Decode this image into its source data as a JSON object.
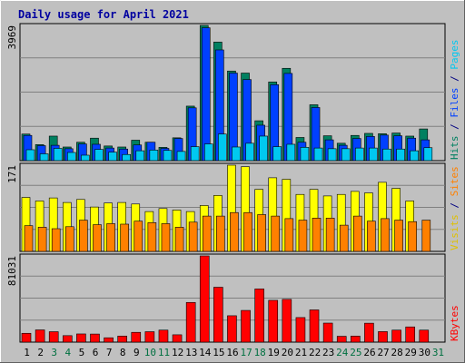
{
  "chart_data": {
    "type": "bar",
    "title": "Daily usage for April 2021",
    "x": [
      "1",
      "2",
      "3",
      "4",
      "5",
      "6",
      "7",
      "8",
      "9",
      "10",
      "11",
      "12",
      "13",
      "14",
      "15",
      "16",
      "17",
      "18",
      "19",
      "20",
      "21",
      "22",
      "23",
      "24",
      "25",
      "26",
      "27",
      "28",
      "29",
      "30",
      "31"
    ],
    "weekend_days": [
      "3",
      "4",
      "10",
      "11",
      "17",
      "18",
      "24",
      "25",
      "31"
    ],
    "panels": [
      {
        "name": "hits-files-pages",
        "ymax_label": "3969",
        "ymax": 3969,
        "side_labels": [
          {
            "text": "Hits",
            "color": "#008060"
          },
          {
            "text": " / ",
            "color": "#000080"
          },
          {
            "text": "Files",
            "color": "#0040ff"
          },
          {
            "text": " / ",
            "color": "#000080"
          },
          {
            "text": "Pages",
            "color": "#00c8f0"
          }
        ],
        "series": [
          {
            "name": "Hits",
            "color": "#008060",
            "values": [
              780,
              470,
              720,
              400,
              540,
              660,
              430,
              400,
              600,
              540,
              390,
              670,
              1600,
              3969,
              3480,
              2630,
              2570,
              1170,
              2310,
              2710,
              680,
              1640,
              730,
              510,
              740,
              800,
              790,
              810,
              720,
              930,
              0
            ]
          },
          {
            "name": "Files",
            "color": "#0040ff",
            "values": [
              740,
              440,
              450,
              350,
              490,
              480,
              370,
              340,
              460,
              540,
              360,
              650,
              1550,
              3900,
              3250,
              2570,
              2380,
              1040,
              2230,
              2560,
              540,
              1560,
              610,
              450,
              650,
              710,
              750,
              730,
              660,
              610,
              0
            ]
          },
          {
            "name": "Pages",
            "color": "#00c8f0",
            "values": [
              320,
              200,
              360,
              240,
              160,
              330,
              250,
              180,
              290,
              310,
              300,
              270,
              410,
              490,
              780,
              400,
              510,
              720,
              410,
              480,
              390,
              370,
              350,
              350,
              370,
              370,
              340,
              340,
              290,
              380,
              0
            ]
          }
        ]
      },
      {
        "name": "visits-sites",
        "ymax_label": "171",
        "ymax": 171,
        "side_labels": [
          {
            "text": "Visits",
            "color": "#e0c000"
          },
          {
            "text": " / ",
            "color": "#000080"
          },
          {
            "text": "Sites",
            "color": "#ff8000"
          }
        ],
        "series": [
          {
            "name": "Visits",
            "color": "#ffff00",
            "values": [
              107,
              100,
              106,
              97,
              103,
              88,
              96,
              97,
              94,
              79,
              85,
              82,
              79,
              91,
              111,
              171,
              168,
              123,
              146,
              143,
              113,
              123,
              110,
              113,
              119,
              116,
              137,
              125,
              100,
              0,
              0
            ]
          },
          {
            "name": "Sites",
            "color": "#ff8000",
            "values": [
              51,
              48,
              45,
              49,
              62,
              53,
              55,
              54,
              60,
              57,
              55,
              48,
              58,
              70,
              70,
              77,
              77,
              73,
              70,
              65,
              62,
              66,
              66,
              52,
              70,
              60,
              65,
              62,
              59,
              62,
              0
            ]
          }
        ]
      },
      {
        "name": "kbytes",
        "ymax_label": "81031",
        "ymax": 81031,
        "side_labels": [
          {
            "text": "KBytes",
            "color": "#ff0000"
          }
        ],
        "series": [
          {
            "name": "KBytes",
            "color": "#ff0000",
            "values": [
              8300,
              11500,
              9800,
              6100,
              7700,
              7600,
              4100,
              5700,
              9200,
              9800,
              11300,
              6900,
              37300,
              81031,
              51600,
              24800,
              29800,
              50000,
              39300,
              40200,
              23100,
              30300,
              17900,
              5500,
              5700,
              17800,
              9900,
              11300,
              14300,
              11300,
              0
            ]
          }
        ]
      }
    ]
  }
}
